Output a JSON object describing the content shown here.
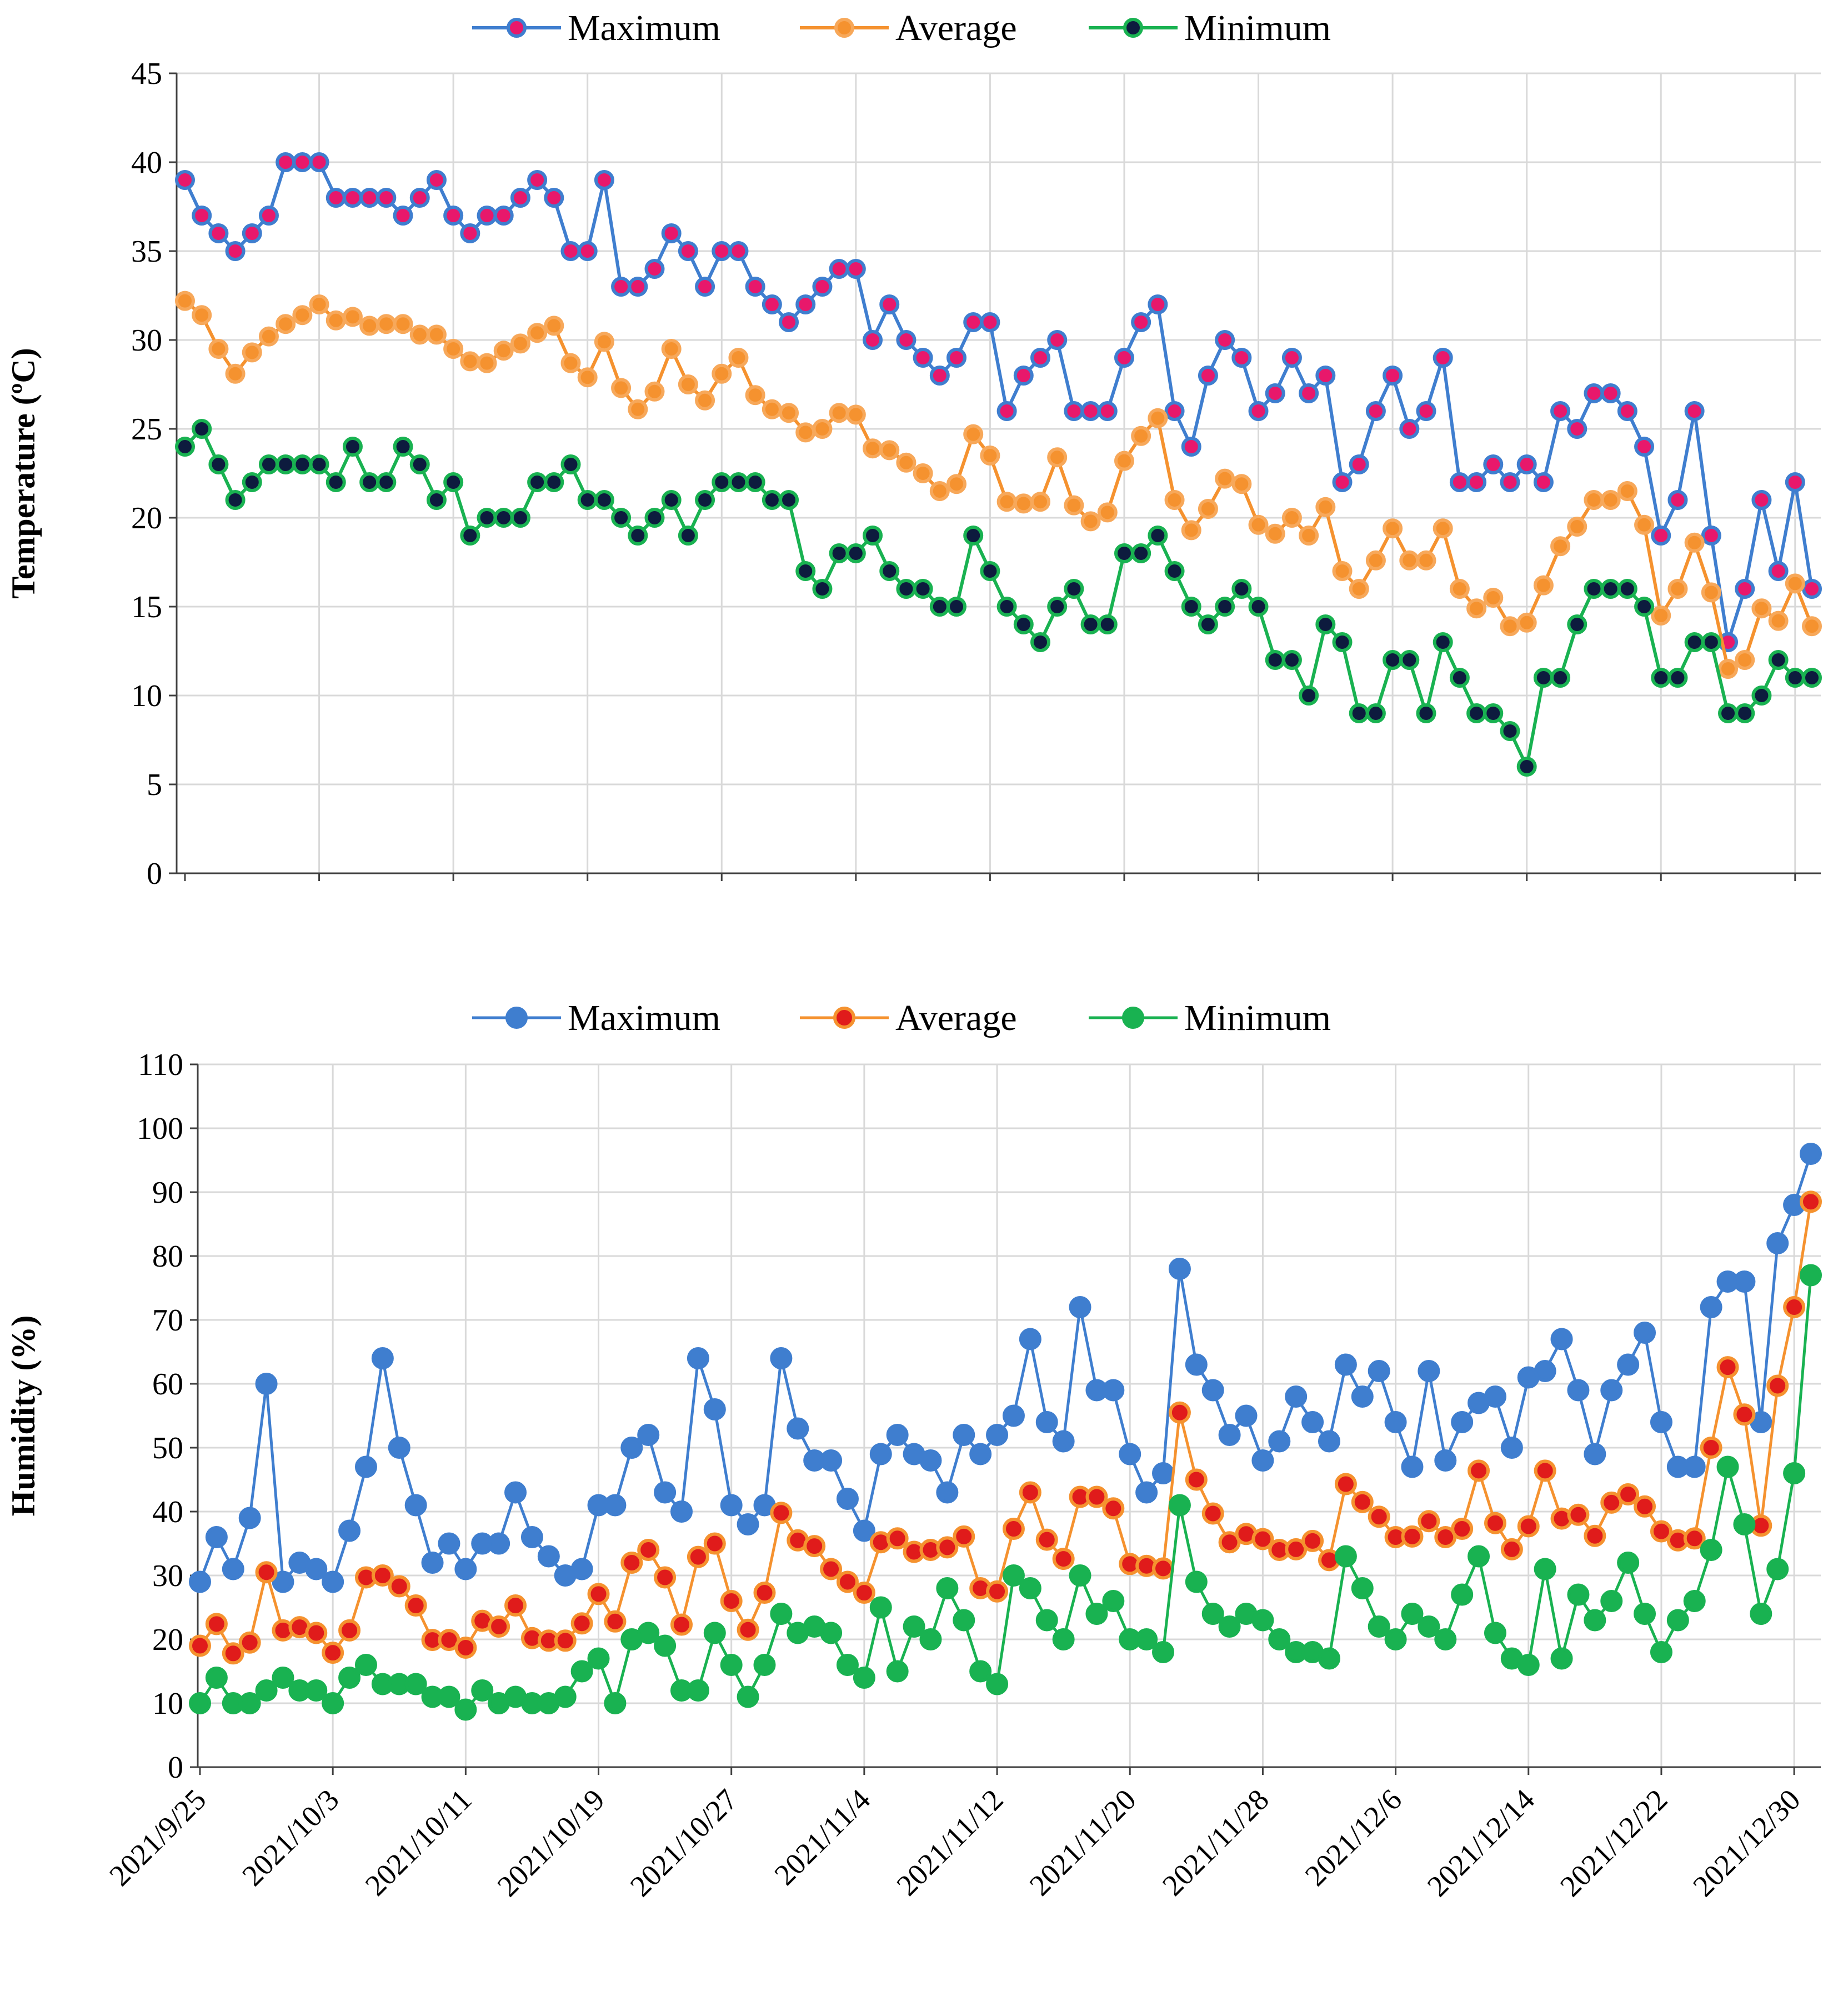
{
  "chart_data": [
    {
      "type": "line",
      "title": "",
      "ylabel": "Temperature (ºC)",
      "xlabel": "",
      "ylim": [
        0,
        45
      ],
      "yticks": [
        0,
        5,
        10,
        15,
        20,
        25,
        30,
        35,
        40,
        45
      ],
      "grid": true,
      "legend": "top-center",
      "x_start": "2021/9/25",
      "x_label_dates": [
        "2021/9/25",
        "2021/10/3",
        "2021/10/11",
        "2021/10/19",
        "2021/10/27",
        "2021/11/4",
        "2021/11/12",
        "2021/11/20",
        "2021/11/28",
        "2021/12/6",
        "2021/12/14",
        "2021/12/22",
        "2021/12/30"
      ],
      "series": [
        {
          "name": "Maximum",
          "line_color": "#3f7ecf",
          "marker_fill": "#e8186b",
          "marker_edge": "#3f7ecf",
          "values": [
            39,
            37,
            36,
            35,
            36,
            37,
            40,
            40,
            40,
            38,
            38,
            38,
            38,
            37,
            38,
            39,
            37,
            36,
            37,
            37,
            38,
            39,
            38,
            35,
            35,
            39,
            33,
            33,
            34,
            36,
            35,
            33,
            35,
            35,
            33,
            32,
            31,
            32,
            33,
            34,
            34,
            30,
            32,
            30,
            29,
            28,
            29,
            31,
            31,
            26,
            28,
            29,
            30,
            26,
            26,
            26,
            29,
            31,
            32,
            26,
            24,
            28,
            30,
            29,
            26,
            27,
            29,
            27,
            28,
            22,
            23,
            26,
            28,
            25,
            26,
            29,
            22,
            22,
            23,
            22,
            23,
            22,
            26,
            25,
            27,
            27,
            26,
            24,
            19,
            21,
            26,
            19,
            13,
            16,
            21,
            17,
            22,
            16
          ]
        },
        {
          "name": "Average",
          "line_color": "#f5922f",
          "marker_fill": "#f5922f",
          "marker_edge": "#f7a85a",
          "values": [
            32.2,
            31.4,
            29.5,
            28.1,
            29.3,
            30.2,
            30.9,
            31.4,
            32.0,
            31.1,
            31.3,
            30.8,
            30.9,
            30.9,
            30.3,
            30.3,
            29.5,
            28.8,
            28.7,
            29.4,
            29.8,
            30.4,
            30.8,
            28.7,
            27.9,
            29.9,
            27.3,
            26.1,
            27.1,
            29.5,
            27.5,
            26.6,
            28.1,
            29.0,
            26.9,
            26.1,
            25.9,
            24.8,
            25.0,
            25.9,
            25.8,
            23.9,
            23.8,
            23.1,
            22.5,
            21.5,
            21.9,
            24.7,
            23.5,
            20.9,
            20.8,
            20.9,
            23.4,
            20.7,
            19.8,
            20.3,
            23.2,
            24.6,
            25.6,
            21.0,
            19.3,
            20.5,
            22.2,
            21.9,
            19.6,
            19.1,
            20.0,
            19.0,
            20.6,
            17.0,
            16.0,
            17.6,
            19.4,
            17.6,
            17.6,
            19.4,
            16.0,
            14.9,
            15.5,
            13.9,
            14.1,
            16.2,
            18.4,
            19.5,
            21.0,
            21.0,
            21.5,
            19.6,
            14.5,
            16.0,
            18.6,
            15.8,
            11.5,
            12.0,
            14.9,
            14.2,
            16.3,
            13.9
          ]
        },
        {
          "name": "Minimum",
          "line_color": "#19b251",
          "marker_fill": "#0d1b3e",
          "marker_edge": "#19b251",
          "values": [
            24,
            25,
            23,
            21,
            22,
            23,
            23,
            23,
            23,
            22,
            24,
            22,
            22,
            24,
            23,
            21,
            22,
            19,
            20,
            20,
            20,
            22,
            22,
            23,
            21,
            21,
            20,
            19,
            20,
            21,
            19,
            21,
            22,
            22,
            22,
            21,
            21,
            17,
            16,
            18,
            18,
            19,
            17,
            16,
            16,
            15,
            15,
            19,
            17,
            15,
            14,
            13,
            15,
            16,
            14,
            14,
            18,
            18,
            19,
            17,
            15,
            14,
            15,
            16,
            15,
            12,
            12,
            10,
            14,
            13,
            9,
            9,
            12,
            12,
            9,
            13,
            11,
            9,
            9,
            8,
            6,
            11,
            11,
            14,
            16,
            16,
            16,
            15,
            11,
            11,
            13,
            13,
            9,
            9,
            10,
            12,
            11,
            11
          ]
        }
      ]
    },
    {
      "type": "line",
      "title": "",
      "ylabel": "Humidity (%)",
      "xlabel": "",
      "ylim": [
        0,
        110
      ],
      "yticks": [
        0,
        10,
        20,
        30,
        40,
        50,
        60,
        70,
        80,
        90,
        100,
        110
      ],
      "grid": true,
      "legend": "top-center",
      "x_start": "2021/9/25",
      "x_label_dates": [
        "2021/9/25",
        "2021/10/3",
        "2021/10/11",
        "2021/10/19",
        "2021/10/27",
        "2021/11/4",
        "2021/11/12",
        "2021/11/20",
        "2021/11/28",
        "2021/12/6",
        "2021/12/14",
        "2021/12/22",
        "2021/12/30"
      ],
      "series": [
        {
          "name": "Maximum",
          "line_color": "#3f7ecf",
          "marker_fill": "#3f7ecf",
          "marker_edge": "#3f7ecf",
          "values": [
            29,
            36,
            31,
            39,
            60,
            29,
            32,
            31,
            29,
            37,
            47,
            64,
            50,
            41,
            32,
            35,
            31,
            35,
            35,
            43,
            36,
            33,
            30,
            31,
            41,
            41,
            50,
            52,
            43,
            40,
            64,
            56,
            41,
            38,
            41,
            64,
            53,
            48,
            48,
            42,
            37,
            49,
            52,
            49,
            48,
            43,
            52,
            49,
            52,
            55,
            67,
            54,
            51,
            72,
            59,
            59,
            49,
            43,
            46,
            78,
            63,
            59,
            52,
            55,
            48,
            51,
            58,
            54,
            51,
            63,
            58,
            62,
            54,
            47,
            62,
            48,
            54,
            57,
            58,
            50,
            61,
            62,
            67,
            59,
            49,
            59,
            63,
            68,
            54,
            47,
            47,
            72,
            76,
            76,
            54,
            82,
            88,
            96
          ]
        },
        {
          "name": "Average",
          "line_color": "#f5922f",
          "marker_fill": "#e01b1b",
          "marker_edge": "#f5922f",
          "values": [
            19,
            22.4,
            17.8,
            19.5,
            30.5,
            21.4,
            21.9,
            21.0,
            17.9,
            21.4,
            29.7,
            30.0,
            28.3,
            25.3,
            19.9,
            19.9,
            18.7,
            22.9,
            22.0,
            25.3,
            20.2,
            19.8,
            19.8,
            22.5,
            27.1,
            22.8,
            32.0,
            34.0,
            29.7,
            22.3,
            32.9,
            35.0,
            26.0,
            21.5,
            27.3,
            39.8,
            35.5,
            34.6,
            31.0,
            29.0,
            27.3,
            35.2,
            35.8,
            33.7,
            34.0,
            34.4,
            36.1,
            28.0,
            27.5,
            37.3,
            43.0,
            35.6,
            32.6,
            42.3,
            42.3,
            40.5,
            31.8,
            31.5,
            31.1,
            55.5,
            45.0,
            39.7,
            35.2,
            36.5,
            35.7,
            34.0,
            34.1,
            35.4,
            32.4,
            44.3,
            41.5,
            39.2,
            36.0,
            36.1,
            38.5,
            36.0,
            37.3,
            46.4,
            38.2,
            34.1,
            37.7,
            46.4,
            38.9,
            39.5,
            36.2,
            41.4,
            42.7,
            40.8,
            36.9,
            35.5,
            35.8,
            50.0,
            62.6,
            55.2,
            37.8,
            59.7,
            72.0,
            88.5
          ]
        },
        {
          "name": "Minimum",
          "line_color": "#19b251",
          "marker_fill": "#19b251",
          "marker_edge": "#19b251",
          "values": [
            10,
            14,
            10,
            10,
            12,
            14,
            12,
            12,
            10,
            14,
            16,
            13,
            13,
            13,
            11,
            11,
            9,
            12,
            10,
            11,
            10,
            10,
            11,
            15,
            17,
            10,
            20,
            21,
            19,
            12,
            12,
            21,
            16,
            11,
            16,
            24,
            21,
            22,
            21,
            16,
            14,
            25,
            15,
            22,
            20,
            28,
            23,
            15,
            13,
            30,
            28,
            23,
            20,
            30,
            24,
            26,
            20,
            20,
            18,
            41,
            29,
            24,
            22,
            24,
            23,
            20,
            18,
            18,
            17,
            33,
            28,
            22,
            20,
            24,
            22,
            20,
            27,
            33,
            21,
            17,
            16,
            31,
            17,
            27,
            23,
            26,
            32,
            24,
            18,
            23,
            26,
            34,
            47,
            38,
            24,
            31,
            46,
            77
          ]
        }
      ]
    }
  ]
}
